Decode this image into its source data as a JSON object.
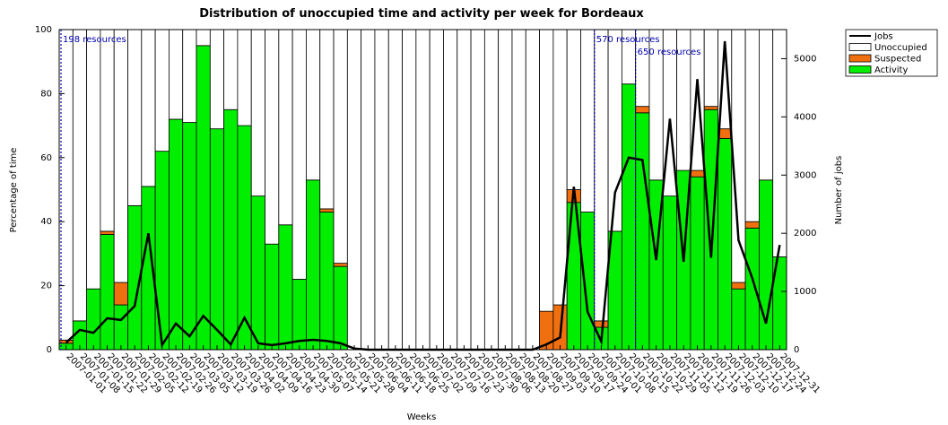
{
  "chart_data": {
    "type": "bar",
    "stacked": true,
    "title": "Distribution of unoccupied time and activity per week for Bordeaux",
    "x_label": "Weeks",
    "y_label": "Percentage of time",
    "y2_label": "Number of jobs",
    "categories": [
      "2007-01-01",
      "2007-01-08",
      "2007-01-15",
      "2007-01-22",
      "2007-01-29",
      "2007-02-05",
      "2007-02-12",
      "2007-02-19",
      "2007-02-26",
      "2007-03-05",
      "2007-03-12",
      "2007-03-19",
      "2007-03-26",
      "2007-04-02",
      "2007-04-09",
      "2007-04-16",
      "2007-04-23",
      "2007-04-30",
      "2007-05-07",
      "2007-05-14",
      "2007-05-21",
      "2007-05-28",
      "2007-06-04",
      "2007-06-11",
      "2007-06-18",
      "2007-06-25",
      "2007-07-02",
      "2007-07-09",
      "2007-07-16",
      "2007-07-23",
      "2007-07-30",
      "2007-08-06",
      "2007-08-13",
      "2007-08-20",
      "2007-08-27",
      "2007-09-03",
      "2007-09-10",
      "2007-09-17",
      "2007-09-24",
      "2007-10-01",
      "2007-10-08",
      "2007-10-15",
      "2007-10-22",
      "2007-10-29",
      "2007-11-05",
      "2007-11-12",
      "2007-11-19",
      "2007-11-26",
      "2007-12-03",
      "2007-12-10",
      "2007-12-17",
      "2007-12-24",
      "2007-12-31"
    ],
    "series": [
      {
        "name": "Jobs",
        "type": "line",
        "axis": "y2",
        "color": "#000000",
        "values": [
          120,
          340,
          290,
          540,
          510,
          750,
          2000,
          80,
          450,
          230,
          580,
          340,
          90,
          550,
          110,
          80,
          110,
          150,
          170,
          150,
          110,
          20,
          0,
          0,
          0,
          0,
          0,
          0,
          0,
          0,
          0,
          0,
          0,
          0,
          0,
          90,
          210,
          2800,
          650,
          140,
          2700,
          3300,
          3260,
          1540,
          3970,
          1510,
          4650,
          1580,
          5300,
          1880,
          1230,
          450,
          1800
        ]
      },
      {
        "name": "Unoccupied",
        "type": "bar",
        "color": "#ffffff",
        "values": [
          97,
          91,
          81,
          63,
          79,
          55,
          49,
          38,
          28,
          29,
          5,
          31,
          25,
          30,
          52,
          67,
          61,
          78,
          47,
          56,
          73,
          100,
          100,
          100,
          100,
          100,
          100,
          100,
          100,
          100,
          100,
          100,
          100,
          100,
          100,
          88,
          86,
          50,
          57,
          91,
          63,
          17,
          24,
          47,
          52,
          44,
          44,
          24,
          31,
          79,
          60,
          47,
          71
        ]
      },
      {
        "name": "Suspected",
        "type": "bar",
        "color": "#f07010",
        "values": [
          1,
          0,
          0,
          1,
          7,
          0,
          0,
          0,
          0,
          0,
          0,
          0,
          0,
          0,
          0,
          0,
          0,
          0,
          0,
          1,
          1,
          0,
          0,
          0,
          0,
          0,
          0,
          0,
          0,
          0,
          0,
          0,
          0,
          0,
          0,
          12,
          14,
          4,
          0,
          2,
          0,
          0,
          2,
          0,
          0,
          0,
          2,
          1,
          3,
          2,
          2,
          0,
          0
        ]
      },
      {
        "name": "Activity",
        "type": "bar",
        "color": "#00ee00",
        "values": [
          2,
          9,
          19,
          36,
          14,
          45,
          51,
          62,
          72,
          71,
          95,
          69,
          75,
          70,
          48,
          33,
          39,
          22,
          53,
          43,
          26,
          0,
          0,
          0,
          0,
          0,
          0,
          0,
          0,
          0,
          0,
          0,
          0,
          0,
          0,
          0,
          0,
          46,
          43,
          7,
          37,
          83,
          74,
          53,
          48,
          56,
          54,
          75,
          66,
          19,
          38,
          53,
          29
        ]
      }
    ],
    "ylim": [
      0,
      100
    ],
    "yticks": [
      0,
      20,
      40,
      60,
      80,
      100
    ],
    "y2lim": [
      0,
      5500
    ],
    "y2ticks": [
      0,
      1000,
      2000,
      3000,
      4000,
      5000
    ],
    "annotations": [
      {
        "text": "198 resources",
        "category": "2007-01-01"
      },
      {
        "text": "570 resources",
        "category": "2007-10-01"
      },
      {
        "text": "650 resources",
        "category": "2007-10-22"
      }
    ],
    "legend": "outside-top-right"
  }
}
